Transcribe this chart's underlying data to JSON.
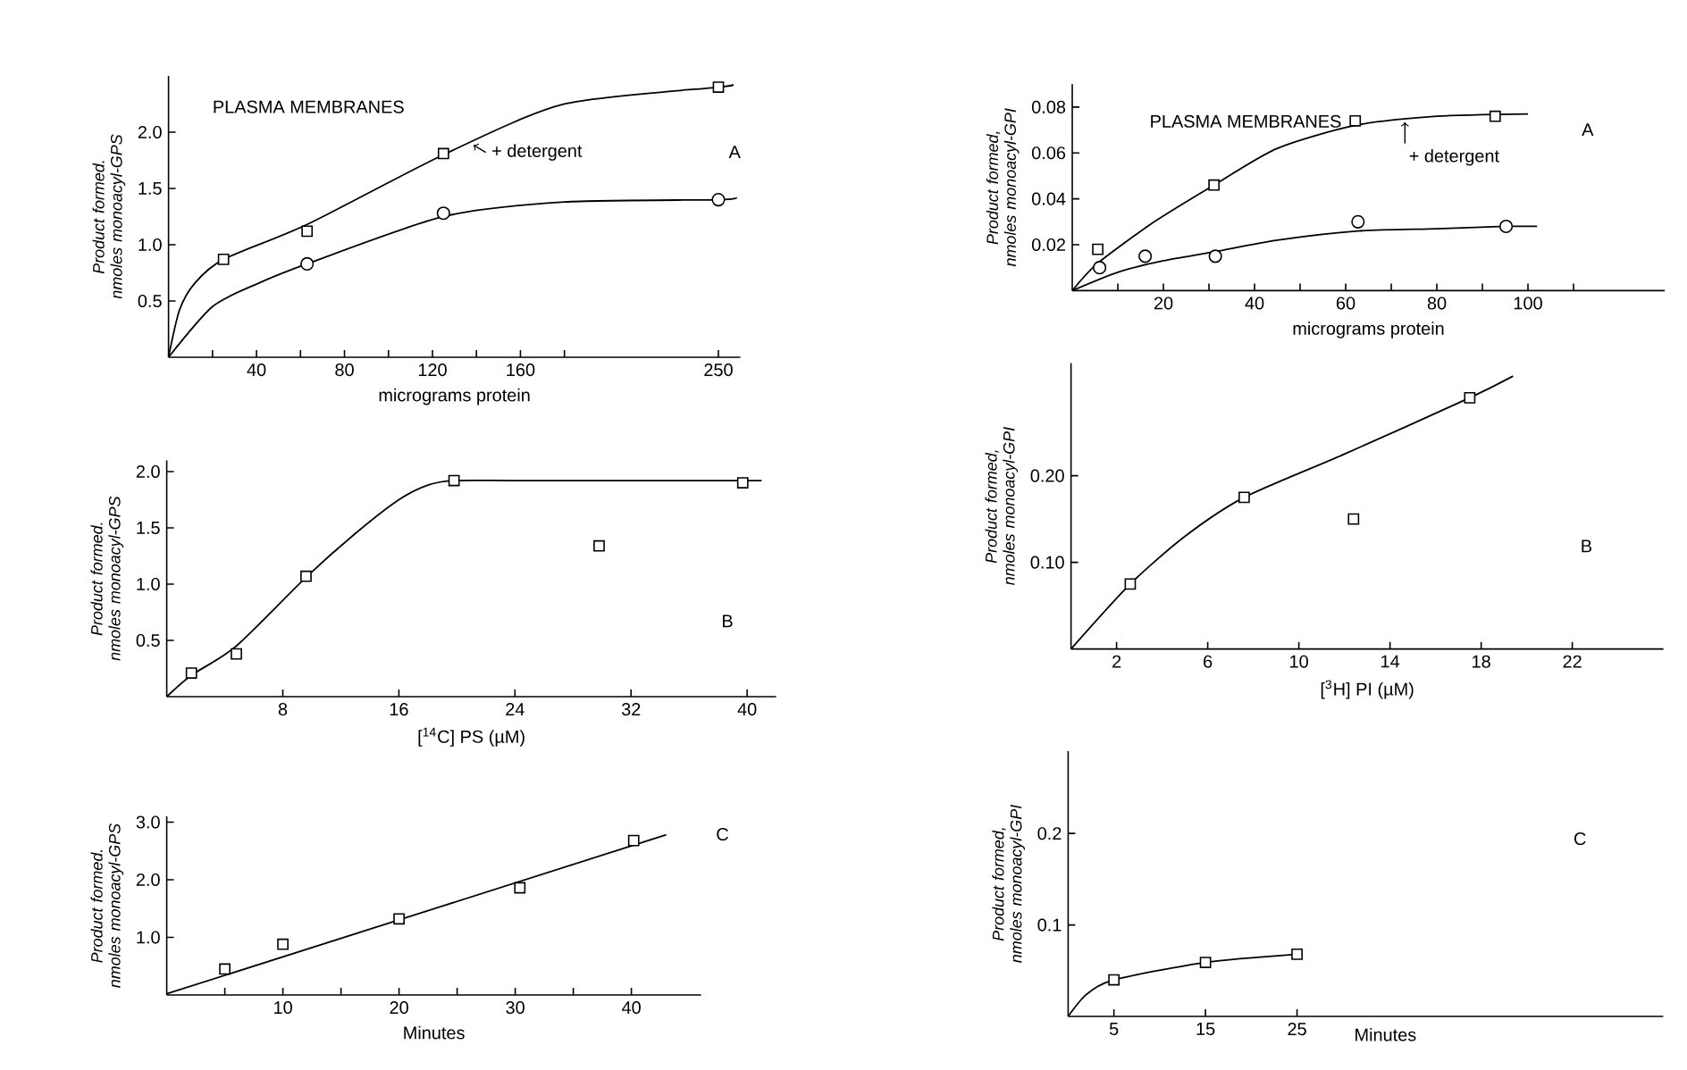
{
  "chart_data": [
    {
      "type": "scatter",
      "title": "PLASMA MEMBRANES",
      "xlabel": "micrograms protein",
      "ylabel": "Product formed. nmoles monoacyl-GPS",
      "xlim": [
        0,
        260
      ],
      "ylim": [
        0,
        2.5
      ],
      "xticks": [
        {
          "value": 20,
          "label": null
        },
        40,
        {
          "value": 60,
          "label": null
        },
        80,
        {
          "value": 100,
          "label": null
        },
        120,
        {
          "value": 140,
          "label": null
        },
        160,
        {
          "value": 180,
          "label": null
        },
        250
      ],
      "yticks": [
        0.5,
        {
          "value": 1.0,
          "label": "1.0"
        },
        1.5,
        {
          "value": 2.0,
          "label": "2.0"
        }
      ],
      "series": [
        {
          "type": "line",
          "color": "#000000",
          "x": [
            0,
            5,
            12,
            25,
            63,
            125,
            180,
            250,
            256
          ],
          "values": [
            0,
            0.42,
            0.66,
            0.87,
            1.18,
            1.8,
            2.25,
            2.4,
            2.42
          ]
        },
        {
          "type": "line",
          "color": "#000000",
          "x": [
            0,
            20,
            40,
            63,
            125,
            180,
            250,
            258
          ],
          "values": [
            0,
            0.45,
            0.65,
            0.83,
            1.25,
            1.38,
            1.4,
            1.42
          ]
        },
        {
          "marker": "square",
          "color": "#000000",
          "x": [
            25,
            63,
            125,
            250
          ],
          "values": [
            0.87,
            1.12,
            1.81,
            2.4
          ]
        },
        {
          "marker": "circle",
          "color": "#000000",
          "x": [
            63,
            125,
            250
          ],
          "values": [
            0.83,
            1.28,
            1.4
          ]
        }
      ],
      "annotations": [
        "A",
        {
          "text": "+ detergent",
          "x": 137,
          "y": 1.9
        }
      ]
    },
    {
      "type": "scatter",
      "xlabel": "[$^{14}$C] PS (µM)",
      "ylabel": "Product formed. nmoles monoacyl-GPS",
      "xlim": [
        0,
        42
      ],
      "ylim": [
        0,
        2.1
      ],
      "xticks": [
        8,
        16,
        24,
        32,
        40
      ],
      "yticks": [
        0.5,
        {
          "value": 1.0,
          "label": "1.0"
        },
        1.5,
        {
          "value": 2.0,
          "label": "2.0"
        }
      ],
      "series": [
        {
          "type": "line",
          "color": "#000000",
          "x": [
            0,
            1.7,
            4.8,
            9.6,
            13,
            16,
            18,
            19.8,
            25,
            41
          ],
          "values": [
            0,
            0.19,
            0.45,
            1.06,
            1.45,
            1.75,
            1.88,
            1.92,
            1.92,
            1.92
          ]
        },
        {
          "marker": "square",
          "color": "#000000",
          "x": [
            1.7,
            4.8,
            9.6,
            19.8,
            29.8,
            39.7
          ],
          "values": [
            0.21,
            0.38,
            1.07,
            1.92,
            1.34,
            1.9
          ]
        }
      ],
      "annotations": [
        "B"
      ]
    },
    {
      "type": "scatter",
      "xlabel": "Minutes",
      "ylabel": "Product formed. nmoles monoacyl-GPS",
      "xlim": [
        0,
        46
      ],
      "ylim": [
        0,
        3.1
      ],
      "xticks": [
        {
          "value": 5,
          "label": null
        },
        10,
        {
          "value": 15,
          "label": null
        },
        20,
        {
          "value": 25,
          "label": null
        },
        30,
        {
          "value": 35,
          "label": null
        },
        40
      ],
      "yticks": [
        {
          "value": 1.0,
          "label": "1.0"
        },
        {
          "value": 2.0,
          "label": "2.0"
        },
        {
          "value": 3.0,
          "label": "3.0"
        }
      ],
      "series": [
        {
          "type": "line",
          "color": "#000000",
          "x": [
            0,
            43
          ],
          "values": [
            0.02,
            2.78
          ]
        },
        {
          "marker": "square",
          "color": "#000000",
          "x": [
            5,
            10,
            20,
            30.4,
            40.2
          ],
          "values": [
            0.45,
            0.88,
            1.32,
            1.86,
            2.68
          ]
        }
      ],
      "annotations": [
        "C"
      ]
    },
    {
      "type": "scatter",
      "title": "PLASMA MEMBRANES",
      "xlabel": "micrograms protein",
      "ylabel": "Product formed, nmoles monoacyl-GPI",
      "xlim": [
        0,
        130
      ],
      "ylim": [
        0,
        0.09
      ],
      "xticks": [
        {
          "value": 10,
          "label": null
        },
        20,
        {
          "value": 30,
          "label": null
        },
        40,
        {
          "value": 50,
          "label": null
        },
        60,
        {
          "value": 70,
          "label": null
        },
        80,
        {
          "value": 90,
          "label": null
        },
        100,
        {
          "value": 110,
          "label": null
        }
      ],
      "yticks": [
        0.02,
        0.04,
        0.06,
        0.08
      ],
      "series": [
        {
          "type": "line",
          "color": "#000000",
          "x": [
            0,
            5.6,
            18,
            31.1,
            45,
            62.1,
            80,
            100
          ],
          "values": [
            0,
            0.012,
            0.03,
            0.046,
            0.062,
            0.072,
            0.076,
            0.077
          ]
        },
        {
          "type": "line",
          "color": "#000000",
          "x": [
            0,
            10,
            20,
            31.4,
            45,
            62.7,
            80,
            95.2,
            102
          ],
          "values": [
            0,
            0.008,
            0.013,
            0.017,
            0.022,
            0.026,
            0.027,
            0.028,
            0.028
          ]
        },
        {
          "marker": "square",
          "color": "#000000",
          "x": [
            5.6,
            31.1,
            62.1,
            92.8
          ],
          "values": [
            0.018,
            0.046,
            0.074,
            0.076
          ]
        },
        {
          "marker": "circle",
          "color": "#000000",
          "x": [
            6,
            16,
            31.4,
            62.7,
            95.2
          ],
          "values": [
            0.01,
            0.015,
            0.015,
            0.03,
            0.028
          ]
        }
      ],
      "annotations": [
        "A",
        {
          "text": "+ detergent",
          "x": 73,
          "y": 0.075
        }
      ]
    },
    {
      "type": "scatter",
      "xlabel": "[$^{3}$H] PI (µM)",
      "ylabel": "Product formed, nmoles monoacyl-GPI",
      "xlim": [
        0,
        26
      ],
      "ylim": [
        0,
        0.33
      ],
      "xticks": [
        2,
        6,
        10,
        14,
        18,
        22
      ],
      "yticks": [
        {
          "value": 0.1,
          "label": "0.10"
        },
        {
          "value": 0.2,
          "label": "0.20"
        }
      ],
      "series": [
        {
          "type": "line",
          "color": "#000000",
          "x": [
            0,
            2.6,
            5,
            7.6,
            12,
            17.5,
            19.4
          ],
          "values": [
            0,
            0.075,
            0.13,
            0.175,
            0.225,
            0.29,
            0.315
          ]
        },
        {
          "marker": "square",
          "color": "#000000",
          "x": [
            2.6,
            7.6,
            12.4,
            17.5
          ],
          "values": [
            0.075,
            0.175,
            0.15,
            0.29
          ]
        }
      ],
      "annotations": [
        "B"
      ]
    },
    {
      "type": "scatter",
      "xlabel": "Minutes",
      "ylabel": "Product formed, nmoles monoacyl-GPI",
      "xlim": [
        0,
        65
      ],
      "ylim": [
        0,
        0.29
      ],
      "xticks": [
        5,
        15,
        25
      ],
      "yticks": [
        0.1,
        0.2
      ],
      "series": [
        {
          "type": "line",
          "color": "#000000",
          "x": [
            0,
            2,
            5,
            15,
            25
          ],
          "values": [
            0,
            0.024,
            0.04,
            0.059,
            0.068
          ]
        },
        {
          "marker": "square",
          "color": "#000000",
          "x": [
            5,
            15,
            25
          ],
          "values": [
            0.04,
            0.059,
            0.068
          ]
        }
      ],
      "annotations": [
        "C"
      ]
    }
  ]
}
